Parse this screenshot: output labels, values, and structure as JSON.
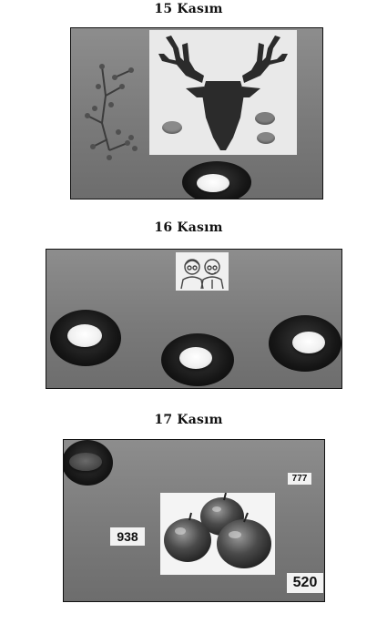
{
  "sections": [
    {
      "title": "15 Kasım"
    },
    {
      "title": "16 Kasım"
    },
    {
      "title": "17 Kasım"
    }
  ],
  "numbers": {
    "n1": "938",
    "n2": "777",
    "n3": "520"
  }
}
